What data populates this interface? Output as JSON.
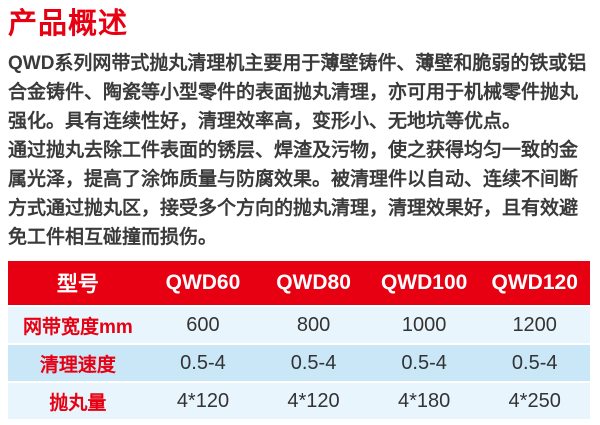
{
  "colors": {
    "accent_red": "#e60012",
    "table_row_light": "#e9f5fc",
    "table_row_dark": "#c9e7f6",
    "body_text": "#3a3a3a",
    "header_text": "#ffffff"
  },
  "title": "产品概述",
  "overview": {
    "lines": [
      "QWD系列网带式抛丸清理机主要用于薄壁铸件、薄壁和脆弱的铁或铝",
      "合金铸件、陶瓷等小型零件的表面抛丸清理，亦可用于机械零件抛丸",
      "强化。具有连续性好，清理效率高，变形小、无地坑等优点。",
      "通过抛丸去除工件表面的锈层、焊渣及污物，使之获得均匀一致的金",
      "属光泽，提高了涂饰质量与防腐效果。被清理件以自动、连续不间断",
      "方式通过抛丸区，接受多个方向的抛丸清理，清理效果好，且有效避",
      "免工件相互碰撞而损伤。"
    ]
  },
  "spec_table": {
    "header": [
      "型号",
      "QWD60",
      "QWD80",
      "QWD100",
      "QWD120"
    ],
    "rows": [
      {
        "label": "网带宽度mm",
        "values": [
          "600",
          "800",
          "1000",
          "1200"
        ]
      },
      {
        "label": "清理速度",
        "values": [
          "0.5-4",
          "0.5-4",
          "0.5-4",
          "0.5-4"
        ]
      },
      {
        "label": "抛丸量",
        "values": [
          "4*120",
          "4*120",
          "4*180",
          "4*250"
        ]
      }
    ]
  }
}
